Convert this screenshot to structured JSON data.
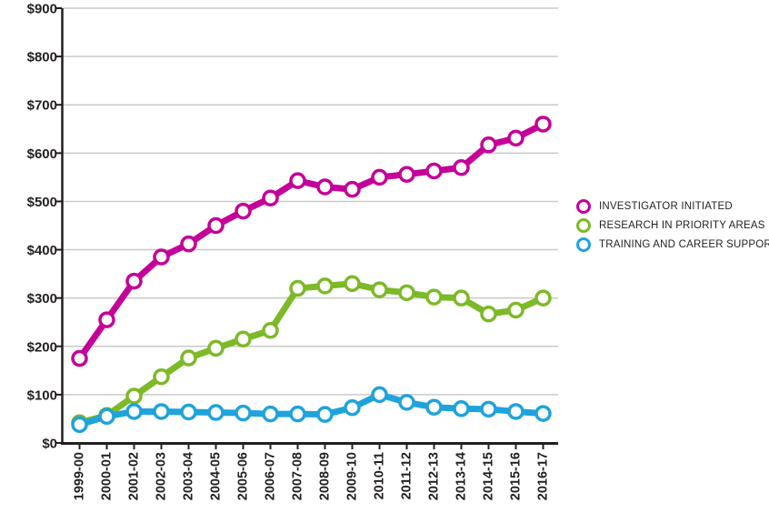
{
  "page": {
    "background": "#ffffff"
  },
  "chart_data": {
    "type": "line",
    "title": "",
    "xlabel": "",
    "ylabel": "",
    "categories": [
      "1999-00",
      "2000-01",
      "2001-02",
      "2002-03",
      "2003-04",
      "2004-05",
      "2005-06",
      "2006-07",
      "2007-08",
      "2008-09",
      "2009-10",
      "2010-11",
      "2011-12",
      "2012-13",
      "2013-14",
      "2014-15",
      "2015-16",
      "2016-17"
    ],
    "series": [
      {
        "name": "INVESTIGATOR INITIATED",
        "color": "#C40099",
        "values": [
          175,
          255,
          335,
          385,
          412,
          450,
          480,
          507,
          543,
          530,
          525,
          550,
          556,
          563,
          570,
          617,
          631,
          660
        ]
      },
      {
        "name": "RESEARCH IN PRIORITY AREAS",
        "color": "#7DB928",
        "values": [
          42,
          57,
          97,
          137,
          176,
          196,
          215,
          233,
          320,
          325,
          330,
          317,
          311,
          302,
          300,
          267,
          275,
          300
        ]
      },
      {
        "name": "TRAINING AND CAREER SUPPORT",
        "color": "#1FA3DC",
        "values": [
          38,
          55,
          65,
          65,
          64,
          63,
          62,
          60,
          60,
          59,
          73,
          100,
          84,
          74,
          71,
          70,
          65,
          61
        ]
      }
    ],
    "y_axis": {
      "min": 0,
      "max": 900,
      "step": 100,
      "tick_labels": [
        "$0",
        "$100",
        "$200",
        "$300",
        "$400",
        "$500",
        "$600",
        "$700",
        "$800",
        "$900"
      ]
    },
    "legend_position": "right",
    "grid": true,
    "marker_style": "open-circle",
    "axis_color": "#231F20",
    "grid_color": "#C9C9C9",
    "tick_label_color": "#231F20"
  }
}
